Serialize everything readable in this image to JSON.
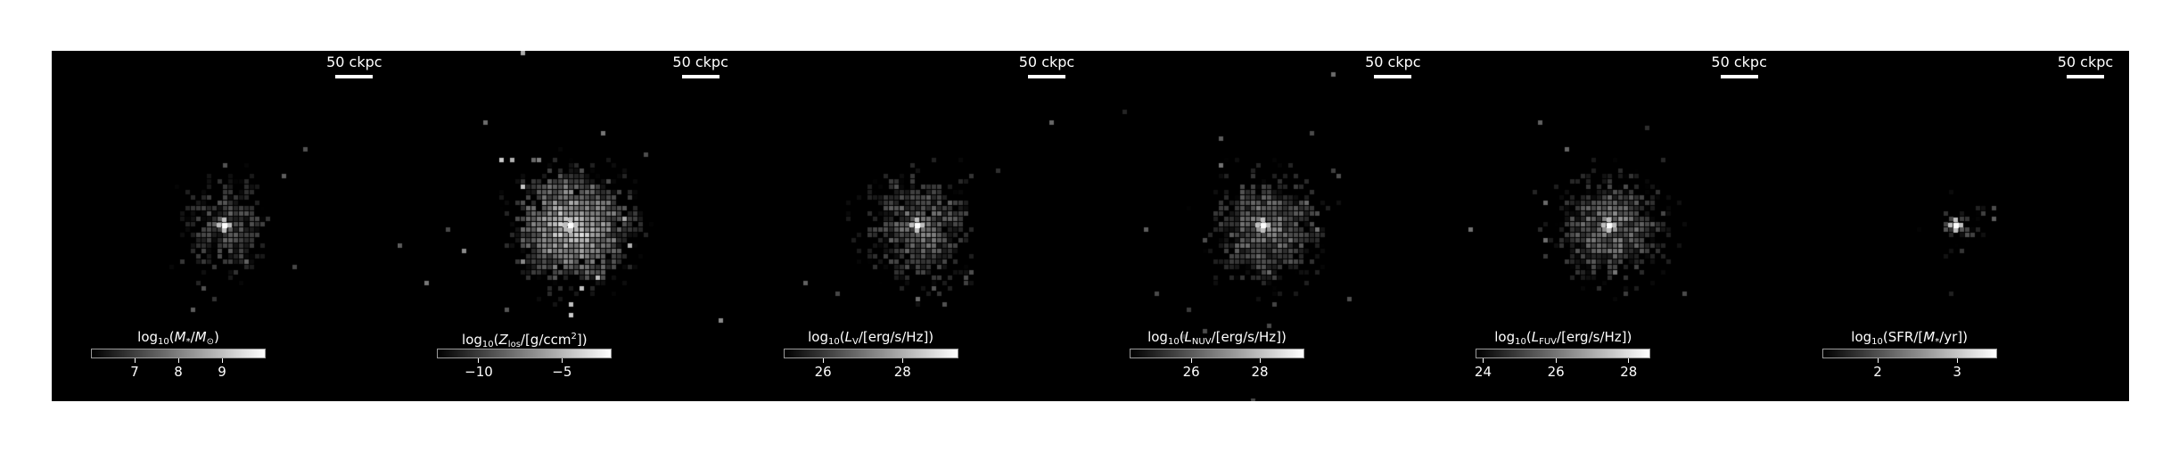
{
  "panels": [
    {
      "scale_label": "50 ckpc",
      "cbar_html": "log<sub>10</sub>(<i>M</i><sub>*</sub>/<i>M</i><sub>⊙</sub>)",
      "cbar_range": [
        6.0,
        10.0
      ],
      "ticks": [
        {
          "value": 7,
          "label": "7"
        },
        {
          "value": 8,
          "label": "8"
        },
        {
          "value": 9,
          "label": "9"
        }
      ],
      "map": {
        "seed": 11,
        "n": 520,
        "spread": 0.9,
        "bright": 0.32,
        "core": 1.0,
        "sparse": 14
      }
    },
    {
      "scale_label": "50 ckpc",
      "cbar_html": "log<sub>10</sub>(<i>Z</i><sub>los</sub>/[g/ccm<sup>2</sup>])",
      "cbar_range": [
        -12.5,
        -2.0
      ],
      "ticks": [
        {
          "value": -10,
          "label": "−10"
        },
        {
          "value": -5,
          "label": "−5"
        }
      ],
      "map": {
        "seed": 23,
        "n": 1300,
        "spread": 1.3,
        "bright": 0.82,
        "core": 1.0,
        "sparse": 30
      }
    },
    {
      "scale_label": "50 ckpc",
      "cbar_html": "log<sub>10</sub>(<i>L</i><sub>V</sub>/[erg/s/Hz])",
      "cbar_range": [
        25.0,
        29.4
      ],
      "ticks": [
        {
          "value": 26,
          "label": "26"
        },
        {
          "value": 28,
          "label": "28"
        }
      ],
      "map": {
        "seed": 37,
        "n": 900,
        "spread": 1.15,
        "bright": 0.42,
        "core": 1.0,
        "sparse": 22
      }
    },
    {
      "scale_label": "50 ckpc",
      "cbar_html": "log<sub>10</sub>(<i>L</i><sub>NUV</sub>/[erg/s/Hz])",
      "cbar_range": [
        24.2,
        29.3
      ],
      "ticks": [
        {
          "value": 26,
          "label": "26"
        },
        {
          "value": 28,
          "label": "28"
        }
      ],
      "map": {
        "seed": 41,
        "n": 950,
        "spread": 1.15,
        "bright": 0.48,
        "core": 1.0,
        "sparse": 24
      }
    },
    {
      "scale_label": "50 ckpc",
      "cbar_html": "log<sub>10</sub>(<i>L</i><sub>FUV</sub>/[erg/s/Hz])",
      "cbar_range": [
        23.8,
        28.6
      ],
      "ticks": [
        {
          "value": 24,
          "label": "24"
        },
        {
          "value": 26,
          "label": "26"
        },
        {
          "value": 28,
          "label": "28"
        }
      ],
      "map": {
        "seed": 53,
        "n": 950,
        "spread": 1.15,
        "bright": 0.48,
        "core": 1.0,
        "sparse": 24
      }
    },
    {
      "scale_label": "50 ckpc",
      "cbar_html": "log<sub>10</sub>(SFR/[<i>M</i><sub>*</sub>/yr])",
      "cbar_range": [
        1.3,
        3.5
      ],
      "ticks": [
        {
          "value": 2,
          "label": "2"
        },
        {
          "value": 3,
          "label": "3"
        }
      ],
      "map": {
        "seed": 67,
        "n": 60,
        "spread": 0.55,
        "bright": 0.25,
        "core": 1.0,
        "sparse": 4
      }
    }
  ]
}
